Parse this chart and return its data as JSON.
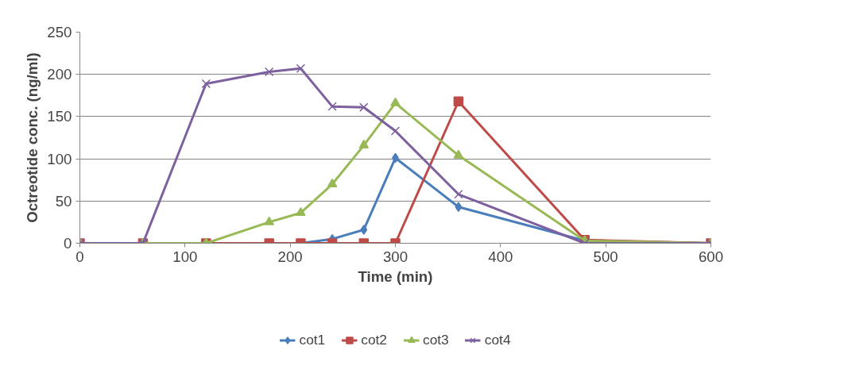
{
  "chart_data": {
    "type": "line",
    "xlabel": "Time (min)",
    "ylabel": "Octreotide conc. (ng/ml)",
    "x": [
      0,
      60,
      120,
      180,
      210,
      240,
      270,
      300,
      360,
      480,
      600
    ],
    "xlim": [
      0,
      600
    ],
    "xticks": [
      0,
      100,
      200,
      300,
      400,
      500,
      600
    ],
    "ylim": [
      0,
      250
    ],
    "yticks": [
      0,
      50,
      100,
      150,
      200,
      250
    ],
    "grid": "y",
    "legend": "bottom",
    "series": [
      {
        "name": "cot1",
        "color": "#4a7ebb",
        "marker": "diamond",
        "values": [
          null,
          null,
          null,
          0,
          0,
          5,
          16,
          101,
          43,
          3,
          0
        ]
      },
      {
        "name": "cot2",
        "color": "#be4b48",
        "marker": "square",
        "values": [
          0,
          0,
          0,
          0,
          0,
          0,
          0,
          0,
          168,
          4,
          0
        ]
      },
      {
        "name": "cot3",
        "color": "#98b954",
        "marker": "triangle",
        "values": [
          0,
          0,
          0,
          25,
          36,
          70,
          116,
          166,
          104,
          3,
          0
        ]
      },
      {
        "name": "cot4",
        "color": "#7d60a0",
        "marker": "x",
        "values": [
          0,
          0,
          189,
          203,
          207,
          162,
          161,
          133,
          58,
          0,
          0
        ]
      }
    ]
  }
}
